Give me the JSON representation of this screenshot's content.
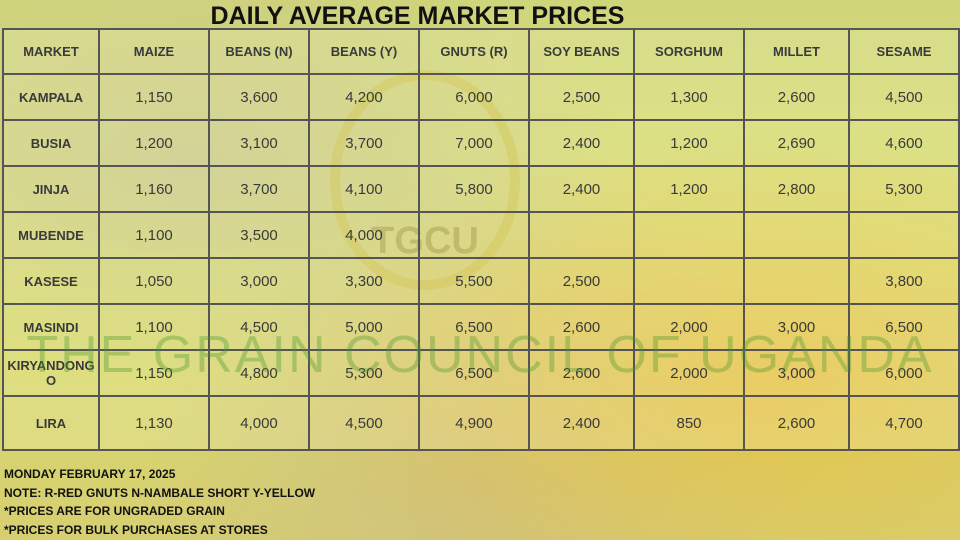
{
  "title": "DAILY AVERAGE MARKET PRICES",
  "watermark": {
    "logo": "TGCU",
    "text": "THE GRAIN COUNCIL OF UGANDA"
  },
  "table": {
    "header": [
      "MARKET",
      "MAIZE",
      "BEANS (N)",
      "BEANS (Y)",
      "GNUTS (R)",
      "SOY BEANS",
      "SORGHUM",
      "MILLET",
      "SESAME"
    ],
    "rows": [
      [
        "KAMPALA",
        "1,150",
        "3,600",
        "4,200",
        "6,000",
        "2,500",
        "1,300",
        "2,600",
        "4,500"
      ],
      [
        "BUSIA",
        "1,200",
        "3,100",
        "3,700",
        "7,000",
        "2,400",
        "1,200",
        "2,690",
        "4,600"
      ],
      [
        "JINJA",
        "1,160",
        "3,700",
        "4,100",
        "5,800",
        "2,400",
        "1,200",
        "2,800",
        "5,300"
      ],
      [
        "MUBENDE",
        "1,100",
        "3,500",
        "4,000",
        null,
        null,
        null,
        null,
        null
      ],
      [
        "KASESE",
        "1,050",
        "3,000",
        "3,300",
        "5,500",
        "2,500",
        null,
        null,
        "3,800"
      ],
      [
        "MASINDI",
        "1,100",
        "4,500",
        "5,000",
        "6,500",
        "2,600",
        "2,000",
        "3,000",
        "6,500"
      ],
      [
        "KIRYANDONGO",
        "1,150",
        "4,800",
        "5,300",
        "6,500",
        "2,600",
        "2,000",
        "3,000",
        "6,000"
      ],
      [
        "LIRA",
        "1,130",
        "4,000",
        "4,500",
        "4,900",
        "2,400",
        "850",
        "2,600",
        "4,700"
      ]
    ]
  },
  "footer": [
    "MONDAY FEBRUARY 17, 2025",
    "NOTE: R-RED GNUTS  N-NAMBALE SHORT  Y-YELLOW",
    "*PRICES ARE FOR UNGRADED GRAIN",
    "*PRICES FOR BULK PURCHASES AT STORES"
  ]
}
